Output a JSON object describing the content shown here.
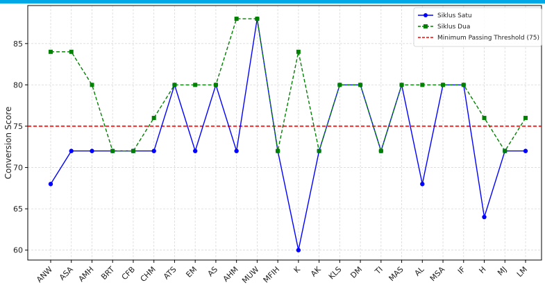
{
  "chart_data": {
    "type": "line",
    "title": "",
    "xlabel": "",
    "ylabel": "Conversion Score",
    "ylim": [
      58.8,
      89.6
    ],
    "yticks": [
      60,
      65,
      70,
      75,
      80,
      85
    ],
    "grid": true,
    "legend_position": "top-right",
    "categories": [
      "ANW",
      "ASA",
      "AMH",
      "BRT",
      "CFB",
      "CHM",
      "ATS",
      "EM",
      "AS",
      "AHM",
      "MUW",
      "MFIH",
      "K",
      "AK",
      "KLS",
      "DM",
      "TI",
      "MAS",
      "AL",
      "MSA",
      "IF",
      "H",
      "MJ",
      "LM"
    ],
    "series": [
      {
        "name": "Siklus Satu",
        "color": "#0000ff",
        "line_style": "solid",
        "marker": "circle",
        "values": [
          68,
          72,
          72,
          72,
          72,
          72,
          80,
          72,
          80,
          72,
          88,
          72,
          60,
          72,
          80,
          80,
          72,
          80,
          68,
          80,
          80,
          64,
          72,
          72
        ]
      },
      {
        "name": "Siklus Dua",
        "color": "#008000",
        "line_style": "dashed",
        "marker": "square",
        "values": [
          84,
          84,
          80,
          72,
          72,
          76,
          80,
          80,
          80,
          88,
          88,
          72,
          84,
          72,
          80,
          80,
          72,
          80,
          80,
          80,
          80,
          76,
          72,
          76
        ]
      }
    ],
    "reference_lines": [
      {
        "name": "Minimum Passing Threshold (75)",
        "value": 75,
        "color": "#ff0000",
        "line_style": "dashed"
      }
    ]
  }
}
